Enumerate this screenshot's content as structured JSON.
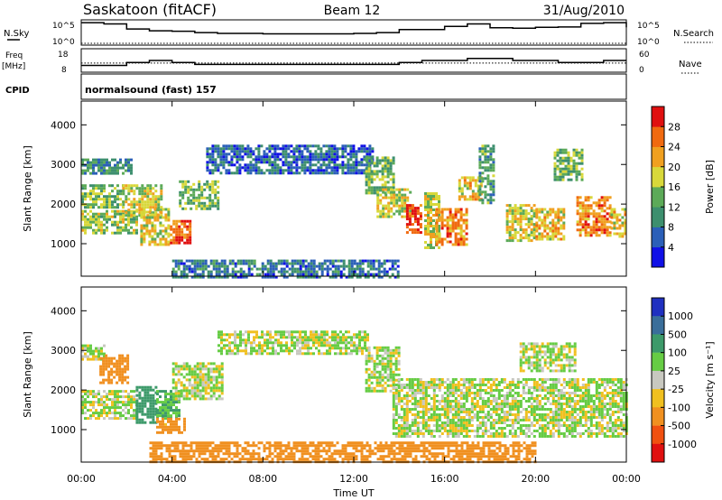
{
  "header": {
    "station": "Saskatoon (fitACF)",
    "beam": "Beam 12",
    "date": "31/Aug/2010"
  },
  "status_panels": {
    "nsky": {
      "label": "N.Sky",
      "ticks": [
        "10^5",
        "10^0"
      ]
    },
    "nsearch": {
      "label": "N.Search",
      "ticks": [
        "10^5",
        "10^0"
      ]
    },
    "freq": {
      "label_line1": "Freq",
      "label_line2": "[MHz]",
      "ticks": [
        18,
        8
      ]
    },
    "nave": {
      "label": "Nave",
      "ticks": [
        60,
        0
      ]
    },
    "cpid": {
      "label": "CPID",
      "program": "normalsound (fast) 157"
    }
  },
  "x_axis": {
    "label": "Time UT",
    "ticks": [
      "00:00",
      "04:00",
      "08:00",
      "12:00",
      "16:00",
      "20:00",
      "00:00"
    ]
  },
  "power_panel": {
    "ylabel": "Slant Range [km]",
    "yticks": [
      1000,
      2000,
      3000,
      4000
    ],
    "colorbar": {
      "label": "Power [dB]",
      "ticks": [
        4,
        8,
        12,
        16,
        20,
        24,
        28
      ],
      "colors": [
        "#1010e6",
        "#2b5fb8",
        "#3d8f6e",
        "#5caa58",
        "#d8d83a",
        "#f0a020",
        "#f06a10",
        "#e01010"
      ]
    }
  },
  "velocity_panel": {
    "ylabel": "Slant Range [km]",
    "yticks": [
      1000,
      2000,
      3000,
      4000
    ],
    "colorbar": {
      "label": "Velocity [m s⁻¹]",
      "ticks": [
        "1000",
        "500",
        "100",
        "25",
        "-25",
        "-100",
        "-500",
        "-1000"
      ],
      "colors": [
        "#2030c0",
        "#3a6e9a",
        "#3d9a6a",
        "#66cc44",
        "#c8c8c0",
        "#f0c020",
        "#f09020",
        "#f05010",
        "#e01010"
      ]
    }
  },
  "chart_data": [
    {
      "type": "line",
      "title": "N.Sky / N.Search",
      "x_unit": "hours UT",
      "x": [
        0,
        1,
        2,
        3,
        4,
        5,
        6,
        8,
        10,
        12,
        13,
        14,
        16,
        17,
        18,
        19,
        20,
        21,
        22,
        23,
        24
      ],
      "series": [
        {
          "name": "N.Sky",
          "values": [
            60000,
            30000,
            2000,
            800,
            600,
            300,
            200,
            150,
            150,
            200,
            300,
            1500,
            8000,
            30000,
            4000,
            3000,
            5000,
            6000,
            40000,
            60000,
            5000
          ]
        },
        {
          "name": "N.Search",
          "values": [
            1,
            1,
            1,
            1,
            1,
            1,
            1,
            1,
            1,
            1,
            1,
            1,
            1,
            1,
            1,
            1,
            1,
            1,
            1,
            1,
            1
          ]
        }
      ],
      "yscale": "log",
      "ylim": [
        1,
        100000
      ]
    },
    {
      "type": "line",
      "title": "Freq / Nave",
      "x_unit": "hours UT",
      "x": [
        0,
        1,
        2,
        3,
        4,
        5,
        6,
        8,
        10,
        12,
        13,
        14,
        15,
        16,
        17,
        18,
        19,
        20,
        21,
        22,
        23,
        24
      ],
      "series": [
        {
          "name": "Freq",
          "unit": "MHz",
          "values": [
            10.5,
            10.5,
            12,
            13,
            12,
            11,
            11,
            11,
            11,
            11,
            11,
            12,
            13,
            13,
            14,
            14,
            13,
            13,
            12,
            12,
            13,
            13
          ]
        },
        {
          "name": "Nave",
          "values": [
            22,
            22,
            22,
            22,
            22,
            22,
            22,
            22,
            22,
            22,
            22,
            22,
            22,
            22,
            22,
            22,
            22,
            22,
            22,
            22,
            22,
            22
          ]
        }
      ],
      "ylim": [
        8,
        18
      ]
    },
    {
      "type": "heatmap",
      "title": "Power [dB]",
      "xlabel": "Time UT",
      "ylabel": "Slant Range [km]",
      "x_unit": "hours UT",
      "xlim": [
        0,
        24
      ],
      "ylim": [
        180,
        4600
      ],
      "zlim": [
        0,
        30
      ],
      "regions": [
        {
          "t0": 0.0,
          "t1": 2.2,
          "r0": 2800,
          "r1": 3150,
          "power": 10
        },
        {
          "t0": 0.0,
          "t1": 2.5,
          "r0": 1300,
          "r1": 1850,
          "power": 16
        },
        {
          "t0": 0.0,
          "t1": 1.8,
          "r0": 1950,
          "r1": 2500,
          "power": 14
        },
        {
          "t0": 1.8,
          "t1": 3.5,
          "r0": 1700,
          "r1": 2500,
          "power": 18
        },
        {
          "t0": 2.6,
          "t1": 3.8,
          "r0": 1000,
          "r1": 1900,
          "power": 19
        },
        {
          "t0": 3.9,
          "t1": 4.8,
          "r0": 1000,
          "r1": 1600,
          "power": 26
        },
        {
          "t0": 4.3,
          "t1": 6.0,
          "r0": 1900,
          "r1": 2600,
          "power": 14
        },
        {
          "t0": 5.5,
          "t1": 12.8,
          "r0": 2800,
          "r1": 3500,
          "power": 7
        },
        {
          "t0": 12.5,
          "t1": 13.8,
          "r0": 2300,
          "r1": 3200,
          "power": 14
        },
        {
          "t0": 13.0,
          "t1": 14.5,
          "r0": 1700,
          "r1": 2400,
          "power": 18
        },
        {
          "t0": 14.3,
          "t1": 15.0,
          "r0": 1300,
          "r1": 2000,
          "power": 28
        },
        {
          "t0": 15.1,
          "t1": 15.8,
          "r0": 900,
          "r1": 2300,
          "power": 18
        },
        {
          "t0": 15.6,
          "t1": 17.0,
          "r0": 1000,
          "r1": 1900,
          "power": 24
        },
        {
          "t0": 16.6,
          "t1": 17.6,
          "r0": 2100,
          "r1": 2700,
          "power": 20
        },
        {
          "t0": 17.5,
          "t1": 18.1,
          "r0": 2000,
          "r1": 3500,
          "power": 12
        },
        {
          "t0": 18.7,
          "t1": 19.9,
          "r0": 1100,
          "r1": 2000,
          "power": 18
        },
        {
          "t0": 20.0,
          "t1": 21.3,
          "r0": 1100,
          "r1": 1900,
          "power": 20
        },
        {
          "t0": 20.8,
          "t1": 22.0,
          "r0": 2600,
          "r1": 3400,
          "power": 14
        },
        {
          "t0": 21.8,
          "t1": 23.3,
          "r0": 1200,
          "r1": 2200,
          "power": 24
        },
        {
          "t0": 23.3,
          "t1": 24.0,
          "r0": 1200,
          "r1": 1900,
          "power": 20
        },
        {
          "t0": 4.0,
          "t1": 14.0,
          "r0": 180,
          "r1": 600,
          "power": 8
        }
      ]
    },
    {
      "type": "heatmap",
      "title": "Velocity [m s⁻¹]",
      "xlabel": "Time UT",
      "ylabel": "Slant Range [km]",
      "x_unit": "hours UT",
      "xlim": [
        0,
        24
      ],
      "ylim": [
        180,
        4600
      ],
      "zlim": [
        -1000,
        1000
      ],
      "regions": [
        {
          "t0": 0.0,
          "t1": 1.0,
          "r0": 2800,
          "r1": 3150,
          "velocity": 0
        },
        {
          "t0": 0.0,
          "t1": 2.5,
          "r0": 1300,
          "r1": 2000,
          "velocity": 0
        },
        {
          "t0": 0.8,
          "t1": 2.0,
          "r0": 2200,
          "r1": 2900,
          "velocity": -150
        },
        {
          "t0": 2.4,
          "t1": 3.3,
          "r0": 1200,
          "r1": 2100,
          "velocity": 150
        },
        {
          "t0": 3.3,
          "t1": 4.3,
          "r0": 1300,
          "r1": 2000,
          "velocity": 60
        },
        {
          "t0": 3.3,
          "t1": 4.6,
          "r0": 900,
          "r1": 1300,
          "velocity": -120
        },
        {
          "t0": 4.0,
          "t1": 6.2,
          "r0": 1800,
          "r1": 2700,
          "velocity": 0
        },
        {
          "t0": 6.0,
          "t1": 12.6,
          "r0": 2900,
          "r1": 3500,
          "velocity": 0
        },
        {
          "t0": 12.5,
          "t1": 14.0,
          "r0": 2000,
          "r1": 3100,
          "velocity": 0
        },
        {
          "t0": 13.7,
          "t1": 24.0,
          "r0": 800,
          "r1": 2300,
          "velocity": 0
        },
        {
          "t0": 19.3,
          "t1": 21.8,
          "r0": 2500,
          "r1": 3200,
          "velocity": 0
        },
        {
          "t0": 3.0,
          "t1": 20.0,
          "r0": 180,
          "r1": 700,
          "velocity": -150
        }
      ]
    }
  ]
}
